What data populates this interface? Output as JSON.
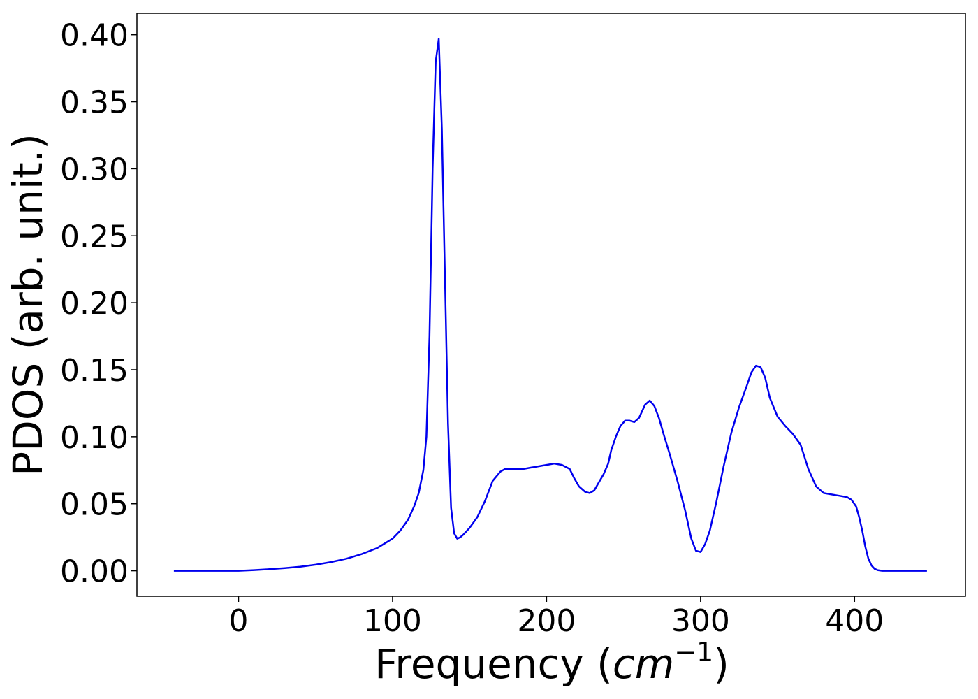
{
  "chart_data": {
    "type": "line",
    "title": "",
    "xlabel_main": "Frequency (",
    "xlabel_math": "cm",
    "xlabel_exp": "−1",
    "xlabel_close": ")",
    "ylabel": "PDOS (arb. unit.)",
    "xlim": [
      -66,
      472
    ],
    "ylim": [
      -0.019,
      0.416
    ],
    "xticks": [
      0,
      100,
      200,
      300,
      400
    ],
    "xtick_labels": [
      "0",
      "100",
      "200",
      "300",
      "400"
    ],
    "yticks": [
      0.0,
      0.05,
      0.1,
      0.15,
      0.2,
      0.25,
      0.3,
      0.35,
      0.4
    ],
    "ytick_labels": [
      "0.00",
      "0.05",
      "0.10",
      "0.15",
      "0.20",
      "0.25",
      "0.30",
      "0.35",
      "0.40"
    ],
    "grid": false,
    "series": [
      {
        "color": "#0000ee",
        "x": [
          -42,
          0,
          10,
          20,
          30,
          40,
          50,
          60,
          70,
          80,
          90,
          100,
          105,
          110,
          114,
          117,
          120,
          122,
          124,
          126,
          128,
          130,
          132,
          134,
          136,
          138,
          140,
          142,
          144,
          146,
          150,
          155,
          160,
          165,
          170,
          173,
          176,
          180,
          185,
          190,
          195,
          200,
          205,
          210,
          215,
          218,
          221,
          225,
          228,
          231,
          234,
          237,
          240,
          242,
          245,
          248,
          251,
          254,
          257,
          260,
          264,
          267,
          270,
          273,
          276,
          280,
          285,
          290,
          294,
          297,
          300,
          303,
          306,
          310,
          315,
          320,
          325,
          330,
          333,
          336,
          339,
          342,
          345,
          350,
          355,
          360,
          365,
          370,
          375,
          380,
          385,
          390,
          395,
          398,
          401,
          403,
          405,
          407,
          409,
          411,
          413,
          415,
          418,
          421,
          425,
          447
        ],
        "y": [
          0.0,
          0.0,
          0.0005,
          0.0012,
          0.002,
          0.003,
          0.0045,
          0.0065,
          0.009,
          0.0125,
          0.017,
          0.024,
          0.03,
          0.038,
          0.048,
          0.058,
          0.075,
          0.1,
          0.175,
          0.3,
          0.38,
          0.397,
          0.33,
          0.22,
          0.11,
          0.047,
          0.028,
          0.024,
          0.025,
          0.027,
          0.032,
          0.04,
          0.052,
          0.067,
          0.074,
          0.076,
          0.076,
          0.076,
          0.076,
          0.077,
          0.078,
          0.079,
          0.08,
          0.079,
          0.076,
          0.069,
          0.063,
          0.059,
          0.058,
          0.06,
          0.066,
          0.072,
          0.08,
          0.09,
          0.1,
          0.108,
          0.112,
          0.112,
          0.111,
          0.114,
          0.124,
          0.127,
          0.123,
          0.114,
          0.102,
          0.087,
          0.067,
          0.045,
          0.024,
          0.015,
          0.014,
          0.02,
          0.03,
          0.05,
          0.078,
          0.103,
          0.122,
          0.138,
          0.148,
          0.153,
          0.152,
          0.144,
          0.129,
          0.115,
          0.108,
          0.102,
          0.094,
          0.076,
          0.063,
          0.058,
          0.057,
          0.056,
          0.055,
          0.053,
          0.048,
          0.04,
          0.03,
          0.018,
          0.009,
          0.004,
          0.0015,
          0.0005,
          0.0,
          0.0,
          0.0,
          0.0
        ]
      }
    ]
  }
}
